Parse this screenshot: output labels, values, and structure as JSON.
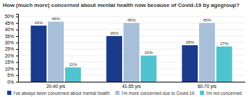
{
  "chart_data": {
    "type": "bar",
    "title": "How (much more) concerned about mental health now because of Covid-19 by agegroup?",
    "categories": [
      "20-40 yrs",
      "41-55 yrs",
      "60-70 yrs"
    ],
    "series": [
      {
        "name": "I've always been concerned about mental health",
        "color": "#1a3a8c",
        "values": [
          43,
          35,
          28
        ],
        "value_labels": [
          "43%",
          "35%",
          "28%"
        ]
      },
      {
        "name": "I'm more concerned due to Covid-19",
        "color": "#a8bfda",
        "values": [
          46,
          45,
          45
        ],
        "value_labels": [
          "46%",
          "45%",
          "45%"
        ]
      },
      {
        "name": "I'm not concerned",
        "color": "#4fc3d0",
        "values": [
          11,
          20,
          27
        ],
        "value_labels": [
          "11%",
          "20%",
          "27%"
        ]
      }
    ],
    "ylim": [
      0,
      52
    ],
    "yticks": [
      {
        "value": 0,
        "label": "0%"
      },
      {
        "value": 5,
        "label": "5%"
      },
      {
        "value": 10,
        "label": "10%"
      },
      {
        "value": 15,
        "label": "15%"
      },
      {
        "value": 20,
        "label": "20%"
      },
      {
        "value": 25,
        "label": "25%"
      },
      {
        "value": 30,
        "label": "30%"
      },
      {
        "value": 35,
        "label": "35%"
      },
      {
        "value": 40,
        "label": "40%"
      },
      {
        "value": 45,
        "label": "45%"
      },
      {
        "value": 50,
        "label": "50%"
      }
    ],
    "grid": true,
    "legend": "bottom",
    "data_labels": true
  }
}
